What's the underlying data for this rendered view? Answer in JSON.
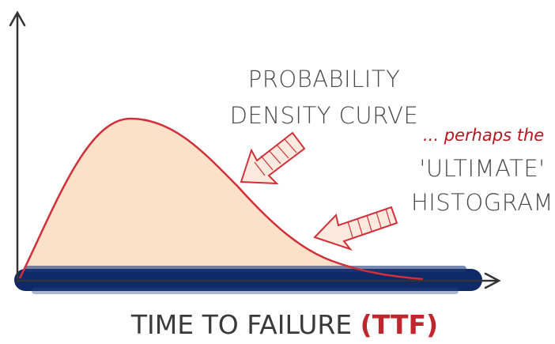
{
  "curve_label": [
    "PROBABILITY",
    "DENSITY CURVE"
  ],
  "aside": "... perhaps the",
  "histogram_label": [
    "'ULTIMATE'",
    "HISTOGRAM"
  ],
  "axis": {
    "label": "TIME TO FAILURE",
    "abbreviation": "(TTF)"
  }
}
